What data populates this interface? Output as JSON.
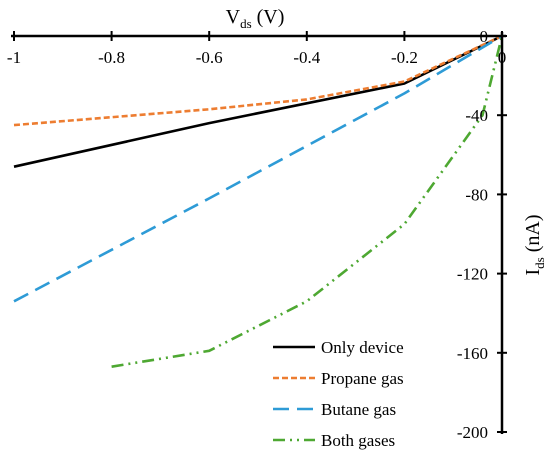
{
  "chart_data": {
    "type": "line",
    "xlabel": {
      "main": "V",
      "sub": "ds",
      "unit": " (V)"
    },
    "ylabel": {
      "main": "I",
      "sub": "ds",
      "unit": " (nA)"
    },
    "xlim": [
      -1,
      0
    ],
    "ylim": [
      -200,
      0
    ],
    "x_axis_position": "top",
    "y_axis_position": "right",
    "grid": false,
    "x_ticks": [
      -1,
      -0.8,
      -0.6,
      -0.4,
      -0.2,
      0
    ],
    "x_tick_labels": [
      "-1",
      "-0.8",
      "-0.6",
      "-0.4",
      "-0.2",
      "0"
    ],
    "y_ticks": [
      0,
      -40,
      -80,
      -120,
      -160,
      -200
    ],
    "y_tick_labels": [
      "0",
      "-40",
      "-80",
      "-120",
      "-160",
      "-200"
    ],
    "legend_position": "bottom-right",
    "series": [
      {
        "name": "Only device",
        "color": "#000000",
        "dash": "solid",
        "x": [
          -1,
          -0.6,
          -0.2,
          0
        ],
        "y": [
          -66,
          -44,
          -24,
          0
        ]
      },
      {
        "name": "Propane gas",
        "color": "#ED7D31",
        "dash": "dot",
        "x": [
          -1,
          -0.6,
          -0.4,
          -0.2,
          0
        ],
        "y": [
          -45,
          -37,
          -32,
          -23,
          0
        ]
      },
      {
        "name": "Butane gas",
        "color": "#2E9BD6",
        "dash": "dash",
        "x": [
          -1,
          -0.6,
          -0.2,
          0
        ],
        "y": [
          -134,
          -82,
          -29,
          0
        ]
      },
      {
        "name": "Both gases",
        "color": "#4EA832",
        "dash": "dashdotdot",
        "x": [
          -0.8,
          -0.6,
          -0.4,
          -0.2,
          -0.04,
          0
        ],
        "y": [
          -167,
          -159,
          -134,
          -95,
          -40,
          0
        ]
      }
    ]
  }
}
